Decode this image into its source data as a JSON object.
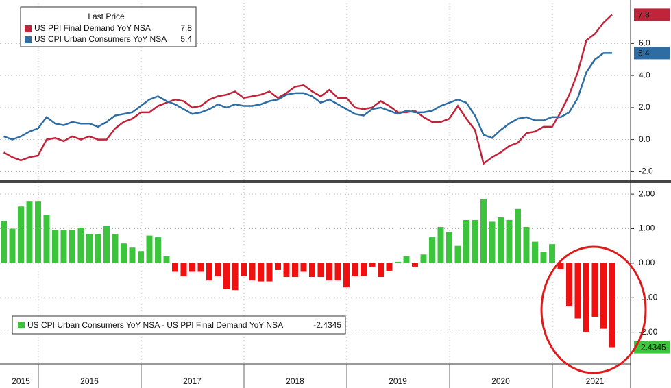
{
  "chart_data": [
    {
      "type": "line",
      "legend_title": "Last Price",
      "ylim": [
        -2.5,
        8.5
      ],
      "yticks": [
        {
          "value": 6,
          "label": "6.0"
        },
        {
          "value": 4,
          "label": "4.0"
        },
        {
          "value": 2,
          "label": "2.0"
        },
        {
          "value": 0,
          "label": "0.0"
        },
        {
          "value": -2,
          "label": "-2.0"
        }
      ],
      "grid": true,
      "legend": "upper left",
      "series": [
        {
          "name": "US PPI Final Demand YoY NSA",
          "color": "#c0243a",
          "values": [
            -0.8,
            -1.1,
            -1.3,
            -1.1,
            -1.0,
            0.0,
            0.1,
            -0.1,
            0.2,
            0.0,
            0.2,
            0.0,
            0.0,
            0.7,
            1.1,
            1.3,
            1.7,
            1.7,
            2.1,
            2.3,
            2.5,
            2.4,
            2.0,
            2.1,
            2.5,
            2.7,
            2.8,
            3.0,
            2.6,
            2.7,
            2.8,
            3.0,
            2.6,
            2.9,
            3.3,
            3.4,
            3.0,
            2.7,
            3.1,
            2.6,
            2.6,
            2.0,
            1.9,
            2.0,
            2.4,
            2.1,
            1.7,
            1.7,
            1.8,
            1.4,
            1.1,
            1.1,
            1.3,
            2.1,
            1.3,
            0.6,
            -1.5,
            -1.1,
            -0.8,
            -0.4,
            -0.2,
            0.4,
            0.5,
            0.8,
            0.8,
            1.7,
            2.8,
            4.2,
            6.2,
            6.6,
            7.3,
            7.8
          ]
        },
        {
          "name": "US CPI Urban Consumers YoY NSA",
          "color": "#2e6da4",
          "values": [
            0.2,
            0.0,
            0.2,
            0.5,
            0.7,
            1.4,
            1.0,
            0.9,
            1.1,
            1.0,
            1.0,
            0.8,
            1.1,
            1.5,
            1.6,
            1.7,
            2.1,
            2.5,
            2.7,
            2.4,
            2.2,
            1.9,
            1.6,
            1.7,
            1.9,
            2.2,
            2.0,
            2.2,
            2.1,
            2.1,
            2.2,
            2.4,
            2.5,
            2.8,
            2.9,
            2.9,
            2.7,
            2.3,
            2.5,
            2.2,
            1.9,
            1.6,
            1.5,
            1.9,
            2.0,
            1.8,
            1.6,
            1.8,
            1.7,
            1.7,
            1.8,
            2.1,
            2.3,
            2.5,
            2.3,
            1.5,
            0.3,
            0.1,
            0.6,
            1.0,
            1.3,
            1.4,
            1.2,
            1.2,
            1.4,
            1.4,
            1.7,
            2.6,
            4.2,
            5.0,
            5.4,
            5.4
          ]
        }
      ]
    },
    {
      "type": "bar",
      "name": "US CPI Urban Consumers YoY NSA - US PPI Final Demand YoY NSA",
      "positive_color": "#3cc43c",
      "negative_color": "#f01010",
      "ylim": [
        -2.9,
        2.3
      ],
      "yticks": [
        {
          "value": 2,
          "label": "2.00"
        },
        {
          "value": 1,
          "label": "1.00"
        },
        {
          "value": 0,
          "label": "0.00"
        },
        {
          "value": -1,
          "label": "-1.00"
        },
        {
          "value": -2,
          "label": "-2.00"
        }
      ],
      "grid": true,
      "legend": "lower left",
      "categories": [
        null,
        null,
        "2015",
        null,
        null,
        null,
        null,
        null,
        null,
        null,
        "2016",
        null,
        null,
        null,
        null,
        null,
        null,
        null,
        null,
        null,
        null,
        null,
        "2017",
        null,
        null,
        null,
        null,
        null,
        null,
        null,
        null,
        null,
        null,
        null,
        "2018",
        null,
        null,
        null,
        null,
        null,
        null,
        null,
        null,
        null,
        null,
        null,
        "2019",
        null,
        null,
        null,
        null,
        null,
        null,
        null,
        null,
        null,
        null,
        null,
        "2020",
        null,
        null,
        null,
        null,
        null,
        null,
        null,
        null,
        null,
        null,
        "2021",
        null,
        null
      ],
      "values": [
        1.22,
        1.0,
        1.64,
        1.8,
        1.8,
        1.4,
        0.95,
        0.95,
        0.97,
        1.03,
        0.85,
        0.85,
        1.08,
        0.85,
        0.57,
        0.45,
        0.35,
        0.8,
        0.75,
        0.2,
        -0.25,
        -0.38,
        -0.25,
        -0.25,
        -0.5,
        -0.38,
        -0.75,
        -0.78,
        -0.37,
        -0.5,
        -0.53,
        -0.53,
        -0.2,
        -0.4,
        -0.4,
        -0.25,
        -0.4,
        -0.4,
        -0.5,
        -0.5,
        -0.7,
        -0.38,
        -0.37,
        -0.1,
        -0.4,
        -0.22,
        0.04,
        0.2,
        -0.1,
        0.25,
        0.75,
        1.05,
        0.9,
        0.5,
        1.25,
        1.25,
        1.85,
        1.2,
        1.33,
        1.25,
        1.57,
        1.05,
        0.62,
        0.33,
        0.55,
        -0.18,
        -1.25,
        -1.6,
        -2.0,
        -1.55,
        -1.9,
        -2.4345
      ]
    }
  ]
}
